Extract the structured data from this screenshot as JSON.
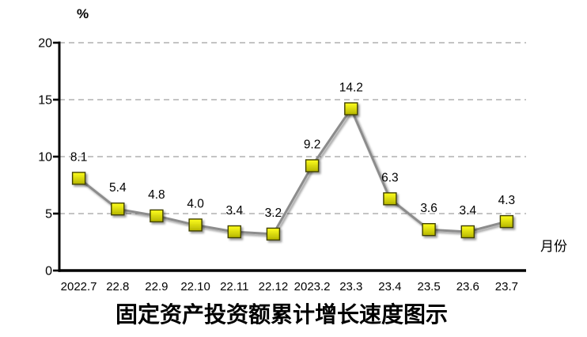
{
  "chart_data": {
    "type": "line",
    "title": "固定资产投资额累计增长速度图示",
    "ylabel": "%",
    "xlabel": "月份",
    "categories": [
      "2022.7",
      "22.8",
      "22.9",
      "22.10",
      "22.11",
      "22.12",
      "2023.2",
      "23.3",
      "23.4",
      "23.5",
      "23.6",
      "23.7"
    ],
    "values": [
      8.1,
      5.4,
      4.8,
      4.0,
      3.4,
      3.2,
      9.2,
      14.2,
      6.3,
      3.6,
      3.4,
      4.3
    ],
    "ylim": [
      0,
      20
    ],
    "yticks": [
      0,
      5,
      10,
      15,
      20
    ],
    "grid": "horizontal-dashed",
    "legend": "none",
    "marker_shape": "square",
    "colors": {
      "line": "#8C8C8C",
      "marker_fill_top": "#FFFF1E",
      "marker_fill_bottom": "#B5B500",
      "marker_border": "#3F3F00",
      "gridline": "#A0A0A0",
      "axis": "#000000",
      "text": "#000000"
    }
  }
}
